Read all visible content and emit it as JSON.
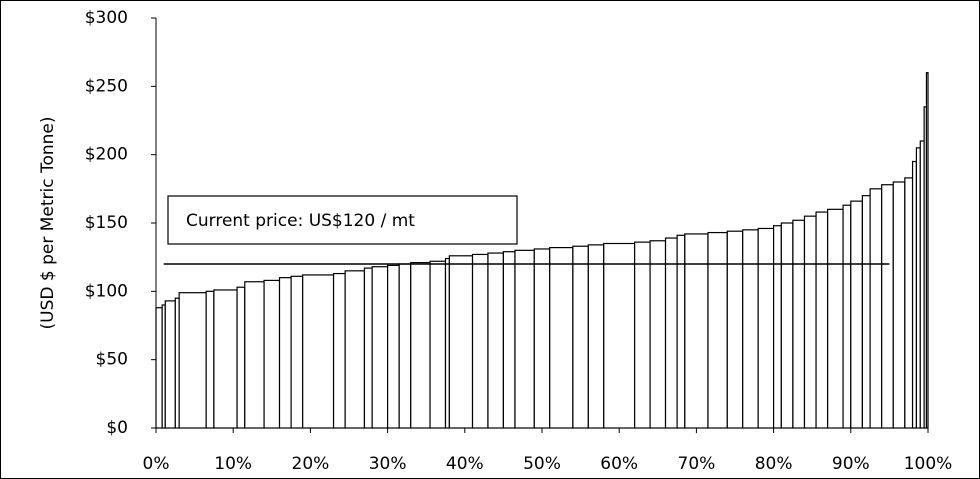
{
  "chart_data": {
    "type": "cost_curve",
    "y_label": "(USD $ per Metric Tonne)",
    "annotation": "Current price: US$120 / mt",
    "price_line": {
      "value": 120,
      "x": [
        1,
        95
      ]
    },
    "widths": [
      0.8,
      0.4,
      1.3,
      0.5,
      3.5,
      1,
      3,
      1,
      2.5,
      2,
      1.5,
      1.5,
      4,
      1.5,
      2.5,
      1,
      2,
      1.5,
      1.5,
      2.5,
      2,
      0.5,
      3,
      2,
      2,
      1.5,
      2.5,
      2,
      3,
      2,
      2,
      4,
      2,
      2,
      1.5,
      1,
      3,
      2.5,
      2,
      2,
      2,
      1,
      1.5,
      1.5,
      1.5,
      1.5,
      2,
      1,
      1.5,
      1,
      1.5,
      1.5,
      1.5,
      1,
      0.5,
      0.5,
      0.5,
      0.3,
      0.2
    ],
    "values": [
      88,
      90,
      93,
      95,
      99,
      100,
      101,
      103,
      107,
      108,
      110,
      111,
      112,
      113,
      115,
      117,
      118,
      119,
      120,
      121,
      122,
      124,
      126,
      127,
      128,
      129,
      130,
      131,
      132,
      133,
      134,
      135,
      136,
      137,
      139,
      141,
      142,
      143,
      144,
      145,
      146,
      148,
      150,
      152,
      155,
      158,
      160,
      163,
      166,
      170,
      175,
      178,
      180,
      183,
      195,
      205,
      210,
      235,
      260
    ],
    "color": "#ffffff",
    "edge_color": "#000000",
    "xlim": [
      0,
      100
    ],
    "xticks": [
      {
        "value": 0,
        "label": "0%"
      },
      {
        "value": 10,
        "label": "10%"
      },
      {
        "value": 20,
        "label": "20%"
      },
      {
        "value": 30,
        "label": "30%"
      },
      {
        "value": 40,
        "label": "40%"
      },
      {
        "value": 50,
        "label": "50%"
      },
      {
        "value": 60,
        "label": "60%"
      },
      {
        "value": 70,
        "label": "70%"
      },
      {
        "value": 80,
        "label": "80%"
      },
      {
        "value": 90,
        "label": "90%"
      },
      {
        "value": 100,
        "label": "100%"
      }
    ],
    "ylim": [
      0,
      300
    ],
    "yticks": [
      {
        "value": 0,
        "label": "$0"
      },
      {
        "value": 50,
        "label": "$50"
      },
      {
        "value": 100,
        "label": "$100"
      },
      {
        "value": 150,
        "label": "$150"
      },
      {
        "value": 200,
        "label": "$200"
      },
      {
        "value": 250,
        "label": "$250"
      },
      {
        "value": 300,
        "label": "$300"
      }
    ]
  }
}
